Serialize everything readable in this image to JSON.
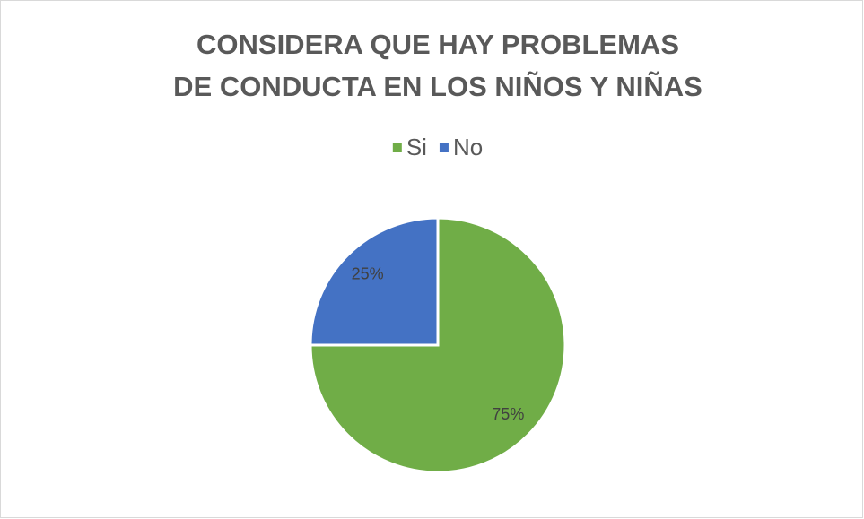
{
  "chart_data": {
    "type": "pie",
    "title": [
      "CONSIDERA QUE HAY PROBLEMAS",
      "DE CONDUCTA EN LOS NIÑOS Y NIÑAS"
    ],
    "categories": [
      "Si",
      "No"
    ],
    "values": [
      75,
      25
    ],
    "value_labels": [
      "75%",
      "25%"
    ],
    "colors": [
      "#70ad47",
      "#4472c4"
    ],
    "legend": "top"
  }
}
